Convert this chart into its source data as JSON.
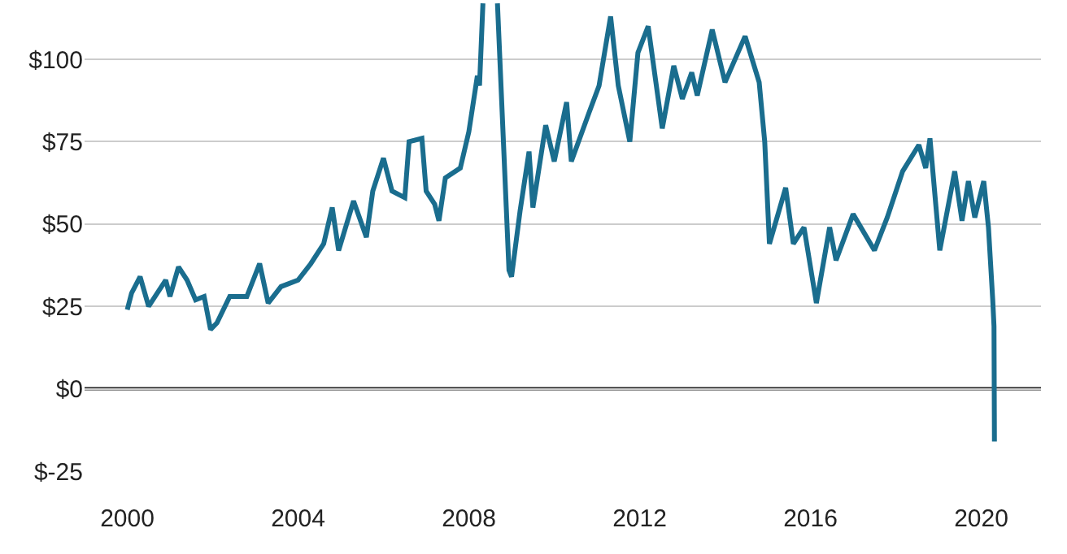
{
  "chart_data": {
    "type": "line",
    "series": [
      {
        "color": "#1a6d8e",
        "x": [
          2000.0,
          2000.1,
          2000.3,
          2000.5,
          2000.9,
          2001.0,
          2001.2,
          2001.4,
          2001.6,
          2001.8,
          2001.95,
          2002.1,
          2002.4,
          2002.8,
          2003.1,
          2003.3,
          2003.6,
          2004.0,
          2004.3,
          2004.6,
          2004.8,
          2004.95,
          2005.3,
          2005.6,
          2005.75,
          2006.0,
          2006.2,
          2006.5,
          2006.6,
          2006.9,
          2007.0,
          2007.2,
          2007.3,
          2007.45,
          2007.8,
          2008.0,
          2008.2,
          2008.25,
          2008.33,
          2008.5,
          2008.67,
          2008.94,
          2009.0,
          2009.2,
          2009.41,
          2009.5,
          2009.8,
          2010.0,
          2010.29,
          2010.4,
          2010.82,
          2011.05,
          2011.32,
          2011.5,
          2011.77,
          2011.96,
          2012.2,
          2012.53,
          2012.8,
          2013.0,
          2013.22,
          2013.35,
          2013.7,
          2014.0,
          2014.47,
          2014.8,
          2014.93,
          2015.04,
          2015.42,
          2015.6,
          2015.85,
          2016.14,
          2016.45,
          2016.6,
          2017.0,
          2017.5,
          2017.8,
          2018.16,
          2018.54,
          2018.7,
          2018.8,
          2019.03,
          2019.38,
          2019.55,
          2019.7,
          2019.85,
          2020.06,
          2020.17,
          2020.27,
          2020.3,
          2020.31
        ],
        "values": [
          24,
          29,
          34,
          25,
          33,
          28,
          37,
          33,
          27,
          28,
          18,
          20,
          28,
          28,
          38,
          26,
          31,
          33,
          38,
          44,
          55,
          42,
          57,
          46,
          60,
          70,
          60,
          58,
          75,
          76,
          60,
          56,
          51,
          64,
          67,
          78,
          95,
          92,
          117,
          null,
          117,
          36,
          34,
          54,
          72,
          55,
          80,
          69,
          87,
          69,
          84,
          92,
          113,
          92,
          75,
          102,
          110,
          79,
          98,
          88,
          96,
          89,
          109,
          93,
          107,
          93,
          75,
          44,
          61,
          44,
          49,
          26,
          49,
          39,
          53,
          42,
          52,
          66,
          74,
          67,
          76,
          42,
          66,
          51,
          63,
          52,
          63,
          49,
          27,
          19,
          -16
        ]
      }
    ],
    "xlim": [
      1999,
      2021.4
    ],
    "xticks": [
      2000,
      2004,
      2008,
      2012,
      2016,
      2020
    ],
    "ylim": [
      -25,
      118
    ],
    "yticks": [
      {
        "value": -25,
        "label": "$-25"
      },
      {
        "value": 0,
        "label": "$0"
      },
      {
        "value": 25,
        "label": "$25"
      },
      {
        "value": 50,
        "label": "$50"
      },
      {
        "value": 75,
        "label": "$75"
      },
      {
        "value": 100,
        "label": "$100"
      }
    ],
    "grid": "y",
    "ref_lines": [
      {
        "axis": "y",
        "value": 0,
        "color": "#222222"
      }
    ]
  }
}
